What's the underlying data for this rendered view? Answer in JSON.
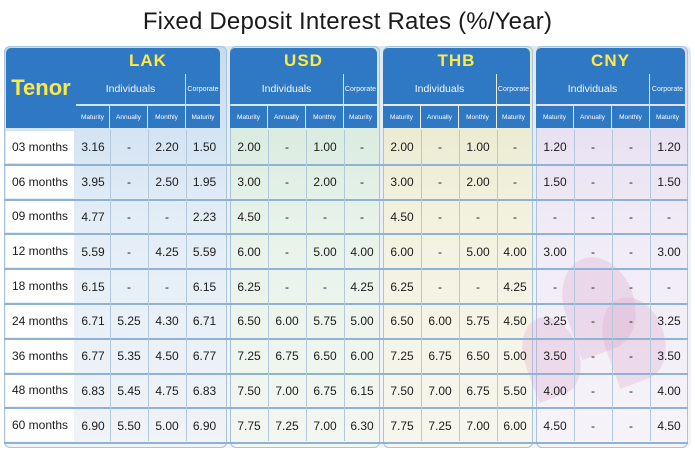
{
  "title": "Fixed Deposit Interest Rates (%/Year)",
  "tenor_header": "Tenor",
  "currencies": [
    "LAK",
    "USD",
    "THB",
    "CNY"
  ],
  "individuals_label": "Individuals",
  "corporate_label": "Corporate",
  "sub_headers": [
    "Maturity",
    "Annually",
    "Monthly",
    "Maturity"
  ],
  "colors": {
    "header_blue": "#2f78c4",
    "currency_yellow": "#ffe94a"
  },
  "rows": [
    {
      "tenor": "03 months",
      "values": [
        "3.16",
        "-",
        "2.20",
        "1.50",
        "2.00",
        "-",
        "1.00",
        "-",
        "2.00",
        "-",
        "1.00",
        "-",
        "1.20",
        "-",
        "-",
        "1.20"
      ]
    },
    {
      "tenor": "06 months",
      "values": [
        "3.95",
        "-",
        "2.50",
        "1.95",
        "3.00",
        "-",
        "2.00",
        "-",
        "3.00",
        "-",
        "2.00",
        "-",
        "1.50",
        "-",
        "-",
        "1.50"
      ]
    },
    {
      "tenor": "09 months",
      "values": [
        "4.77",
        "-",
        "-",
        "2.23",
        "4.50",
        "-",
        "-",
        "-",
        "4.50",
        "-",
        "-",
        "-",
        "-",
        "-",
        "-",
        "-"
      ]
    },
    {
      "tenor": "12 months",
      "values": [
        "5.59",
        "-",
        "4.25",
        "5.59",
        "6.00",
        "-",
        "5.00",
        "4.00",
        "6.00",
        "-",
        "5.00",
        "4.00",
        "3.00",
        "-",
        "-",
        "3.00"
      ]
    },
    {
      "tenor": "18 months",
      "values": [
        "6.15",
        "-",
        "-",
        "6.15",
        "6.25",
        "-",
        "-",
        "4.25",
        "6.25",
        "-",
        "-",
        "4.25",
        "-",
        "-",
        "-",
        "-"
      ]
    },
    {
      "tenor": "24 months",
      "values": [
        "6.71",
        "5.25",
        "4.30",
        "6.71",
        "6.50",
        "6.00",
        "5.75",
        "5.00",
        "6.50",
        "6.00",
        "5.75",
        "4.50",
        "3.25",
        "-",
        "-",
        "3.25"
      ]
    },
    {
      "tenor": "36 months",
      "values": [
        "6.77",
        "5.35",
        "4.50",
        "6.77",
        "7.25",
        "6.75",
        "6.50",
        "6.00",
        "7.25",
        "6.75",
        "6.50",
        "5.00",
        "3.50",
        "-",
        "-",
        "3.50"
      ]
    },
    {
      "tenor": "48 months",
      "values": [
        "6.83",
        "5.45",
        "4.75",
        "6.83",
        "7.50",
        "7.00",
        "6.75",
        "6.15",
        "7.50",
        "7.00",
        "6.75",
        "5.50",
        "4.00",
        "-",
        "-",
        "4.00"
      ]
    },
    {
      "tenor": "60 months",
      "values": [
        "6.90",
        "5.50",
        "5.00",
        "6.90",
        "7.75",
        "7.25",
        "7.00",
        "6.30",
        "7.75",
        "7.25",
        "7.00",
        "6.00",
        "4.50",
        "-",
        "-",
        "4.50"
      ]
    }
  ]
}
